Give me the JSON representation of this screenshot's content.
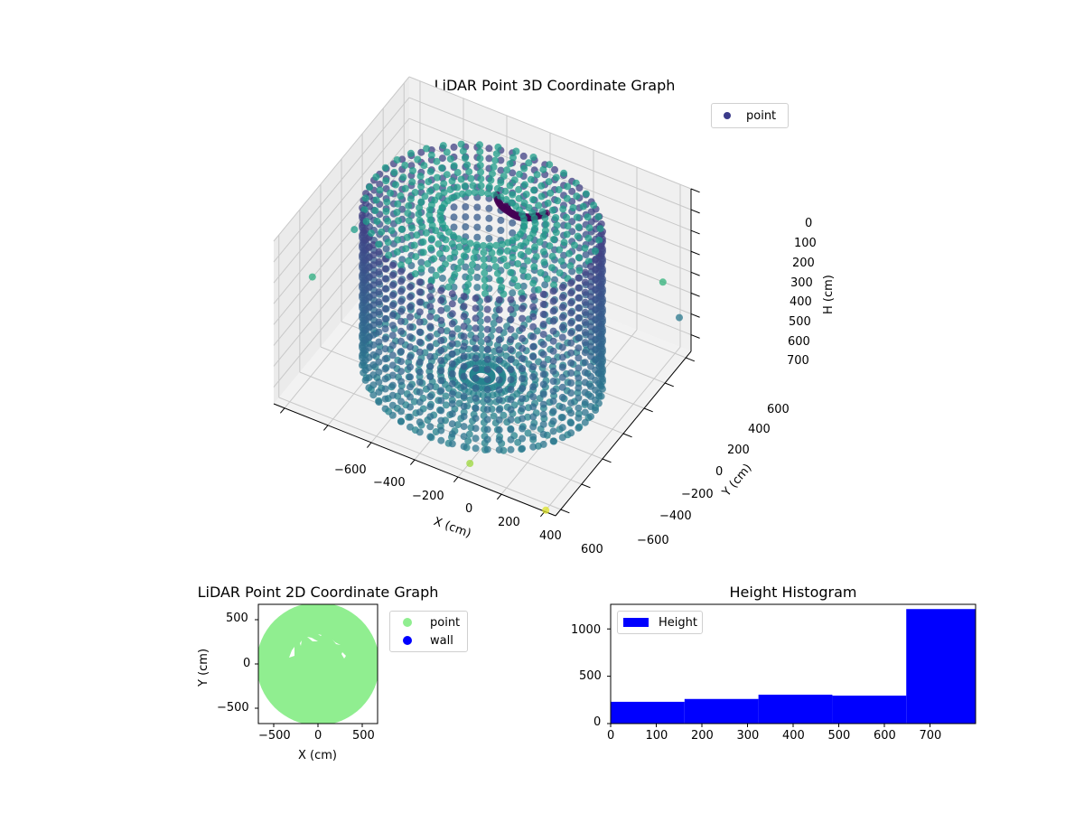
{
  "chart_data": [
    {
      "type": "scatter3d",
      "title": "LiDAR Point 3D Coordinate Graph",
      "xlabel": "X (cm)",
      "ylabel": "Y (cm)",
      "zlabel": "H (cm)",
      "x_ticks": [
        "−600",
        "−400",
        "−200",
        "0",
        "200",
        "400",
        "600"
      ],
      "y_ticks": [
        "−600",
        "−400",
        "−200",
        "0",
        "200",
        "400",
        "600"
      ],
      "z_ticks": [
        "0",
        "100",
        "200",
        "300",
        "400",
        "500",
        "600",
        "700"
      ],
      "z_inverted": true,
      "xlim": [
        -650,
        650
      ],
      "ylim": [
        -650,
        650
      ],
      "zlim": [
        0,
        780
      ],
      "colormap": "viridis",
      "legend": [
        {
          "label": "point",
          "color": "#3b3b8a"
        }
      ],
      "description": "Cylindrical room scan: circular wall of radius ~500 cm with points at heights 0-780 cm, radial floor/ceiling rays, and a dense dark cluster near the top center.",
      "grid": true
    },
    {
      "type": "scatter",
      "title": "LiDAR Point 2D Coordinate Graph",
      "xlabel": "X (cm)",
      "ylabel": "Y (cm)",
      "x_ticks": [
        "−500",
        "0",
        "500"
      ],
      "y_ticks": [
        "500",
        "0",
        "−500"
      ],
      "xlim": [
        -680,
        680
      ],
      "ylim": [
        -680,
        680
      ],
      "legend": [
        {
          "label": "point",
          "color": "#90ee90"
        },
        {
          "label": "wall",
          "color": "#0000ff"
        }
      ],
      "description": "Filled light-green disc of radius ~650 cm with a few small white gaps near the upper half."
    },
    {
      "type": "bar",
      "title": "Height Histogram",
      "xlabel": "",
      "ylabel": "",
      "bins": [
        [
          0,
          162
        ],
        [
          162,
          324
        ],
        [
          324,
          486
        ],
        [
          486,
          648
        ],
        [
          648,
          800
        ]
      ],
      "values": [
        230,
        260,
        305,
        295,
        1210
      ],
      "x_ticks": [
        "0",
        "100",
        "200",
        "300",
        "400",
        "500",
        "600",
        "700"
      ],
      "y_ticks": [
        "0",
        "500",
        "1000"
      ],
      "xlim": [
        0,
        800
      ],
      "ylim": [
        0,
        1260
      ],
      "legend": [
        {
          "label": "Height",
          "color": "#0000ff"
        }
      ],
      "color": "#0000ff"
    }
  ]
}
